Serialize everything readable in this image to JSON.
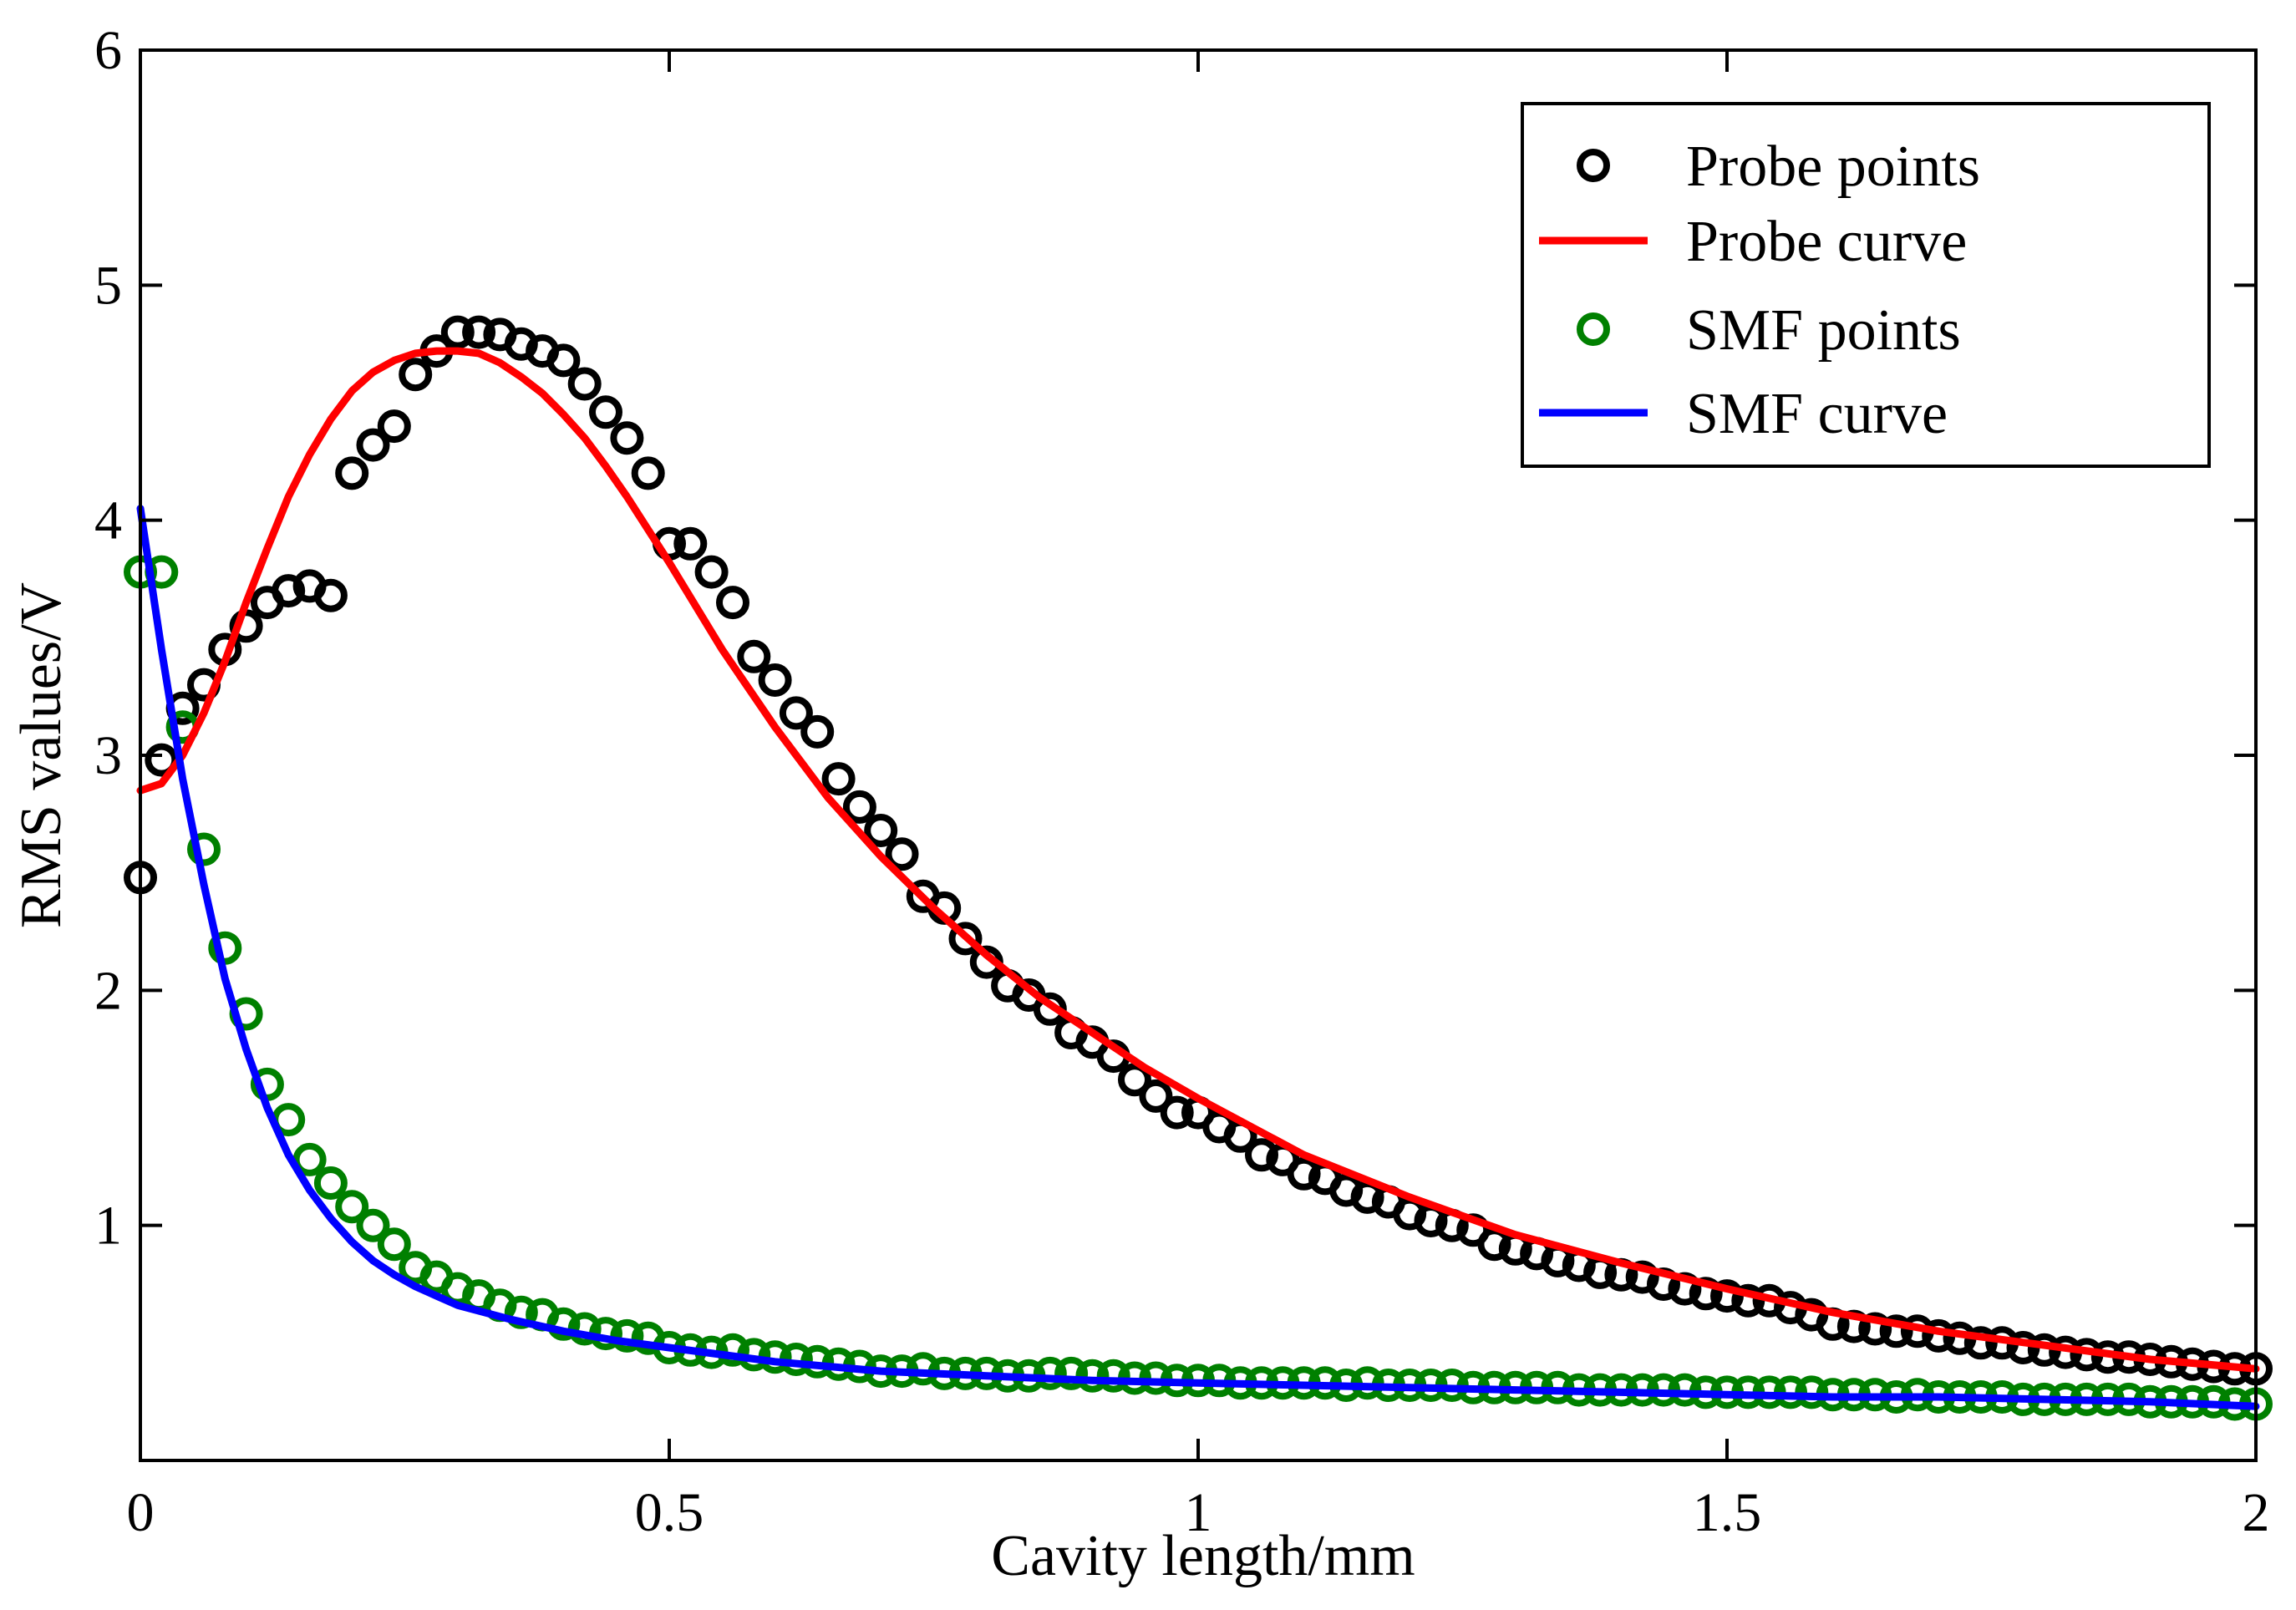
{
  "chart_data": {
    "type": "scatter",
    "title": "",
    "xlabel": "Cavity length/mm",
    "ylabel": "RMS values/V",
    "xlim": [
      0,
      2
    ],
    "ylim": [
      0,
      6
    ],
    "xticks": [
      0,
      0.5,
      1,
      1.5,
      2
    ],
    "xtick_labels": [
      "0",
      "0.5",
      "1",
      "1.5",
      "2"
    ],
    "yticks": [
      1,
      2,
      3,
      4,
      5,
      6
    ],
    "ytick_labels": [
      "1",
      "2",
      "3",
      "4",
      "5",
      "6"
    ],
    "grid": false,
    "legend_position": "top-right",
    "series": [
      {
        "name": "Probe points",
        "kind": "points",
        "color": "#000000",
        "x": [
          0.0,
          0.02,
          0.04,
          0.06,
          0.08,
          0.1,
          0.12,
          0.14,
          0.16,
          0.18,
          0.2,
          0.22,
          0.24,
          0.26,
          0.28,
          0.3,
          0.32,
          0.34,
          0.36,
          0.38,
          0.4,
          0.42,
          0.44,
          0.46,
          0.48,
          0.5,
          0.52,
          0.54,
          0.56,
          0.58,
          0.6,
          0.62,
          0.64,
          0.66,
          0.68,
          0.7,
          0.72,
          0.74,
          0.76,
          0.78,
          0.8,
          0.82,
          0.84,
          0.86,
          0.88,
          0.9,
          0.92,
          0.94,
          0.96,
          0.98,
          1.0,
          1.02,
          1.04,
          1.06,
          1.08,
          1.1,
          1.12,
          1.14,
          1.16,
          1.18,
          1.2,
          1.22,
          1.24,
          1.26,
          1.28,
          1.3,
          1.32,
          1.34,
          1.36,
          1.38,
          1.4,
          1.42,
          1.44,
          1.46,
          1.48,
          1.5,
          1.52,
          1.54,
          1.56,
          1.58,
          1.6,
          1.62,
          1.64,
          1.66,
          1.68,
          1.7,
          1.72,
          1.74,
          1.76,
          1.78,
          1.8,
          1.82,
          1.84,
          1.86,
          1.88,
          1.9,
          1.92,
          1.94,
          1.96,
          1.98,
          2.0
        ],
        "y": [
          2.48,
          2.98,
          3.2,
          3.3,
          3.45,
          3.55,
          3.65,
          3.7,
          3.72,
          3.68,
          4.2,
          4.32,
          4.4,
          4.62,
          4.72,
          4.8,
          4.8,
          4.79,
          4.75,
          4.72,
          4.68,
          4.58,
          4.46,
          4.35,
          4.2,
          3.9,
          3.9,
          3.78,
          3.65,
          3.42,
          3.32,
          3.18,
          3.1,
          2.9,
          2.78,
          2.68,
          2.58,
          2.4,
          2.35,
          2.22,
          2.12,
          2.02,
          1.98,
          1.92,
          1.82,
          1.78,
          1.72,
          1.62,
          1.55,
          1.48,
          1.48,
          1.42,
          1.38,
          1.3,
          1.28,
          1.22,
          1.2,
          1.15,
          1.12,
          1.1,
          1.05,
          1.02,
          1.0,
          0.98,
          0.92,
          0.9,
          0.88,
          0.85,
          0.83,
          0.8,
          0.79,
          0.78,
          0.75,
          0.73,
          0.71,
          0.7,
          0.68,
          0.68,
          0.65,
          0.62,
          0.58,
          0.57,
          0.56,
          0.55,
          0.55,
          0.53,
          0.52,
          0.5,
          0.5,
          0.48,
          0.47,
          0.46,
          0.45,
          0.44,
          0.44,
          0.43,
          0.42,
          0.41,
          0.4,
          0.39,
          0.39
        ]
      },
      {
        "name": "Probe curve",
        "kind": "line",
        "color": "#ff0000",
        "x": [
          0.0,
          0.02,
          0.04,
          0.06,
          0.08,
          0.1,
          0.12,
          0.14,
          0.16,
          0.18,
          0.2,
          0.22,
          0.24,
          0.26,
          0.28,
          0.3,
          0.32,
          0.34,
          0.36,
          0.38,
          0.4,
          0.42,
          0.44,
          0.46,
          0.48,
          0.5,
          0.55,
          0.6,
          0.65,
          0.7,
          0.75,
          0.8,
          0.85,
          0.9,
          0.95,
          1.0,
          1.1,
          1.2,
          1.3,
          1.4,
          1.5,
          1.6,
          1.7,
          1.8,
          1.9,
          2.0
        ],
        "y": [
          2.85,
          2.88,
          3.0,
          3.18,
          3.4,
          3.65,
          3.88,
          4.1,
          4.28,
          4.43,
          4.55,
          4.63,
          4.68,
          4.71,
          4.72,
          4.72,
          4.71,
          4.67,
          4.61,
          4.54,
          4.45,
          4.35,
          4.23,
          4.1,
          3.96,
          3.82,
          3.45,
          3.12,
          2.82,
          2.57,
          2.35,
          2.15,
          1.97,
          1.82,
          1.67,
          1.54,
          1.3,
          1.12,
          0.96,
          0.84,
          0.73,
          0.63,
          0.55,
          0.49,
          0.43,
          0.39
        ]
      },
      {
        "name": "SMF points",
        "kind": "points",
        "color": "#008000",
        "x": [
          0.0,
          0.02,
          0.04,
          0.06,
          0.08,
          0.1,
          0.12,
          0.14,
          0.16,
          0.18,
          0.2,
          0.22,
          0.24,
          0.26,
          0.28,
          0.3,
          0.32,
          0.34,
          0.36,
          0.38,
          0.4,
          0.42,
          0.44,
          0.46,
          0.48,
          0.5,
          0.52,
          0.54,
          0.56,
          0.58,
          0.6,
          0.62,
          0.64,
          0.66,
          0.68,
          0.7,
          0.72,
          0.74,
          0.76,
          0.78,
          0.8,
          0.82,
          0.84,
          0.86,
          0.88,
          0.9,
          0.92,
          0.94,
          0.96,
          0.98,
          1.0,
          1.02,
          1.04,
          1.06,
          1.08,
          1.1,
          1.12,
          1.14,
          1.16,
          1.18,
          1.2,
          1.22,
          1.24,
          1.26,
          1.28,
          1.3,
          1.32,
          1.34,
          1.36,
          1.38,
          1.4,
          1.42,
          1.44,
          1.46,
          1.48,
          1.5,
          1.52,
          1.54,
          1.56,
          1.58,
          1.6,
          1.62,
          1.64,
          1.66,
          1.68,
          1.7,
          1.72,
          1.74,
          1.76,
          1.78,
          1.8,
          1.82,
          1.84,
          1.86,
          1.88,
          1.9,
          1.92,
          1.94,
          1.96,
          1.98,
          2.0
        ],
        "y": [
          3.78,
          3.78,
          3.12,
          2.6,
          2.18,
          1.9,
          1.6,
          1.45,
          1.28,
          1.18,
          1.08,
          1.0,
          0.92,
          0.82,
          0.78,
          0.73,
          0.7,
          0.66,
          0.63,
          0.62,
          0.58,
          0.56,
          0.54,
          0.53,
          0.52,
          0.48,
          0.47,
          0.46,
          0.47,
          0.45,
          0.44,
          0.43,
          0.42,
          0.41,
          0.4,
          0.38,
          0.38,
          0.39,
          0.37,
          0.37,
          0.37,
          0.36,
          0.36,
          0.37,
          0.37,
          0.36,
          0.36,
          0.35,
          0.35,
          0.34,
          0.34,
          0.34,
          0.33,
          0.33,
          0.33,
          0.33,
          0.33,
          0.32,
          0.33,
          0.32,
          0.32,
          0.32,
          0.32,
          0.31,
          0.31,
          0.31,
          0.31,
          0.31,
          0.3,
          0.3,
          0.3,
          0.3,
          0.3,
          0.3,
          0.29,
          0.29,
          0.29,
          0.29,
          0.29,
          0.29,
          0.28,
          0.28,
          0.28,
          0.27,
          0.28,
          0.27,
          0.27,
          0.27,
          0.27,
          0.26,
          0.26,
          0.26,
          0.26,
          0.26,
          0.26,
          0.25,
          0.25,
          0.25,
          0.25,
          0.24,
          0.24
        ]
      },
      {
        "name": "SMF curve",
        "kind": "line",
        "color": "#0000ff",
        "x": [
          0.0,
          0.02,
          0.04,
          0.06,
          0.08,
          0.1,
          0.12,
          0.14,
          0.16,
          0.18,
          0.2,
          0.22,
          0.24,
          0.26,
          0.28,
          0.3,
          0.35,
          0.4,
          0.45,
          0.5,
          0.6,
          0.7,
          0.8,
          0.9,
          1.0,
          1.1,
          1.2,
          1.3,
          1.4,
          1.5,
          1.6,
          1.7,
          1.8,
          1.9,
          2.0
        ],
        "y": [
          4.05,
          3.45,
          2.9,
          2.45,
          2.05,
          1.75,
          1.5,
          1.3,
          1.15,
          1.03,
          0.93,
          0.85,
          0.79,
          0.74,
          0.7,
          0.66,
          0.6,
          0.55,
          0.51,
          0.48,
          0.42,
          0.38,
          0.36,
          0.34,
          0.33,
          0.32,
          0.31,
          0.3,
          0.29,
          0.28,
          0.27,
          0.27,
          0.26,
          0.25,
          0.23
        ]
      }
    ]
  }
}
